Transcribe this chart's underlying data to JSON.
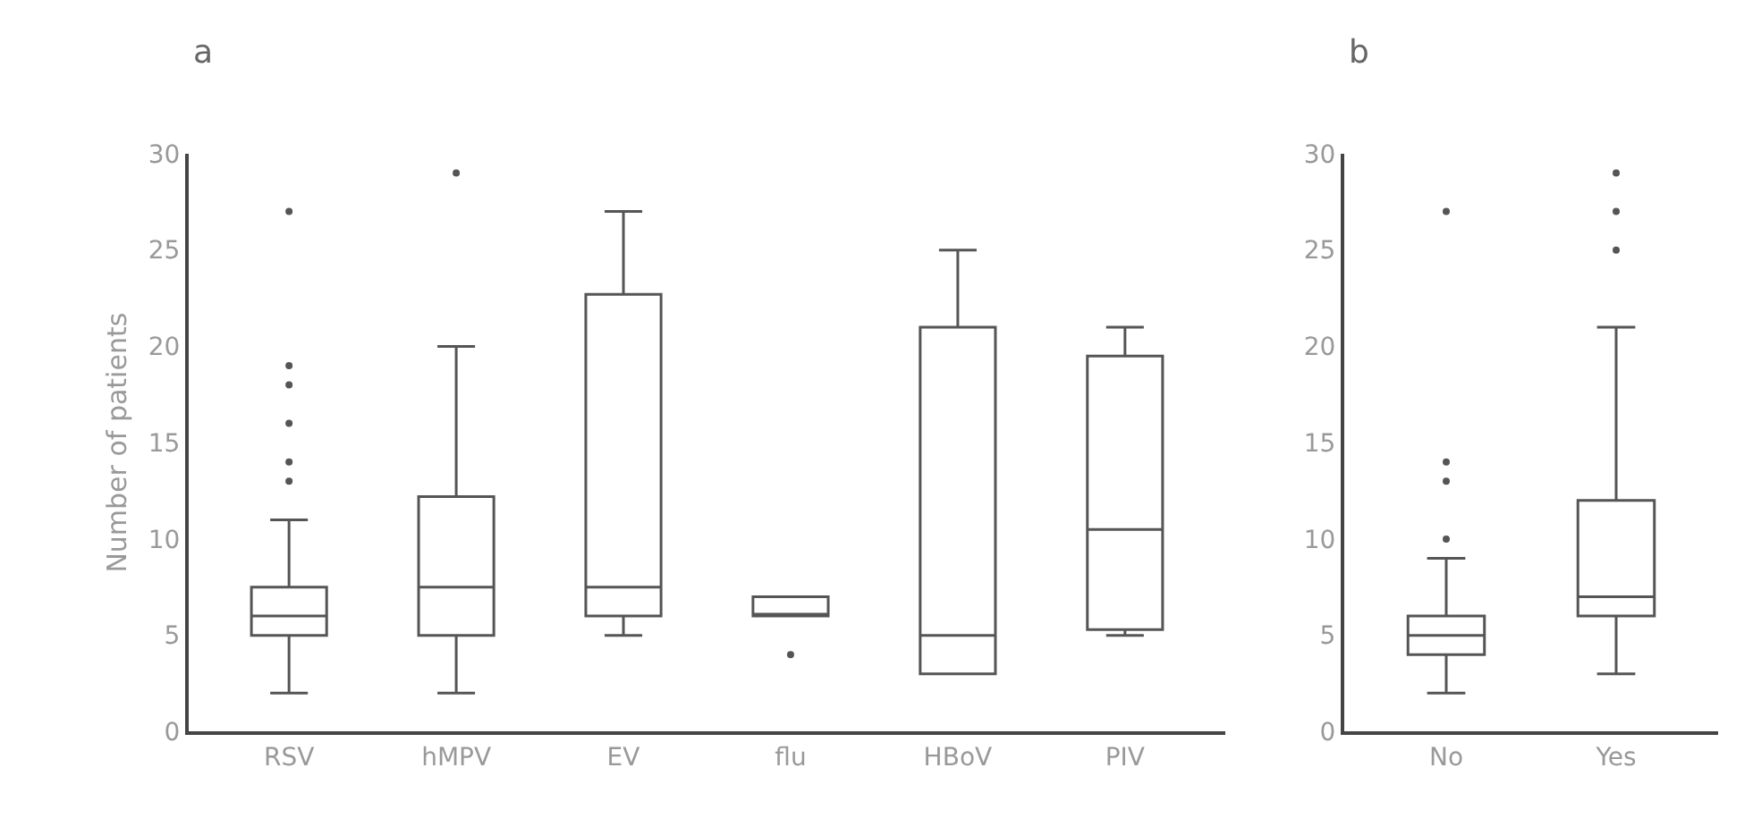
{
  "chart_data": [
    {
      "type": "box",
      "title": "a",
      "ylabel": "Number of patients",
      "categories": [
        "RSV",
        "hMPV",
        "EV",
        "flu",
        "HBoV",
        "PIV"
      ],
      "ylim": [
        0,
        30
      ],
      "yticks": [
        0,
        5,
        10,
        15,
        20,
        25,
        30
      ],
      "color": "#555555",
      "boxes": [
        {
          "low": 2,
          "q1": 5,
          "median": 6,
          "q3": 7.5,
          "high": 11,
          "outliers": [
            13,
            14,
            16,
            18,
            19,
            27
          ]
        },
        {
          "low": 2,
          "q1": 5,
          "median": 7.5,
          "q3": 12.2,
          "high": 20,
          "outliers": [
            29
          ]
        },
        {
          "low": 5,
          "q1": 6,
          "median": 7.5,
          "q3": 22.7,
          "high": 27
        },
        {
          "low": 6,
          "q1": 6,
          "median": 6,
          "q3": 7,
          "high": 7,
          "outliers": [
            4
          ]
        },
        {
          "low": 3,
          "q1": 3,
          "median": 5,
          "q3": 21,
          "high": 25
        },
        {
          "low": 5,
          "q1": 5.3,
          "median": 10.5,
          "q3": 19.5,
          "high": 21
        }
      ]
    },
    {
      "type": "box",
      "title": "b",
      "categories": [
        "No",
        "Yes"
      ],
      "ylim": [
        0,
        30
      ],
      "yticks": [
        0,
        5,
        10,
        15,
        20,
        25,
        30
      ],
      "color": "#555555",
      "boxes": [
        {
          "low": 2,
          "q1": 4,
          "median": 5,
          "q3": 6,
          "high": 9,
          "outliers": [
            10,
            13,
            14,
            27
          ]
        },
        {
          "low": 3,
          "q1": 6,
          "median": 7,
          "q3": 12,
          "high": 21,
          "outliers": [
            25,
            27,
            29
          ]
        }
      ]
    }
  ]
}
